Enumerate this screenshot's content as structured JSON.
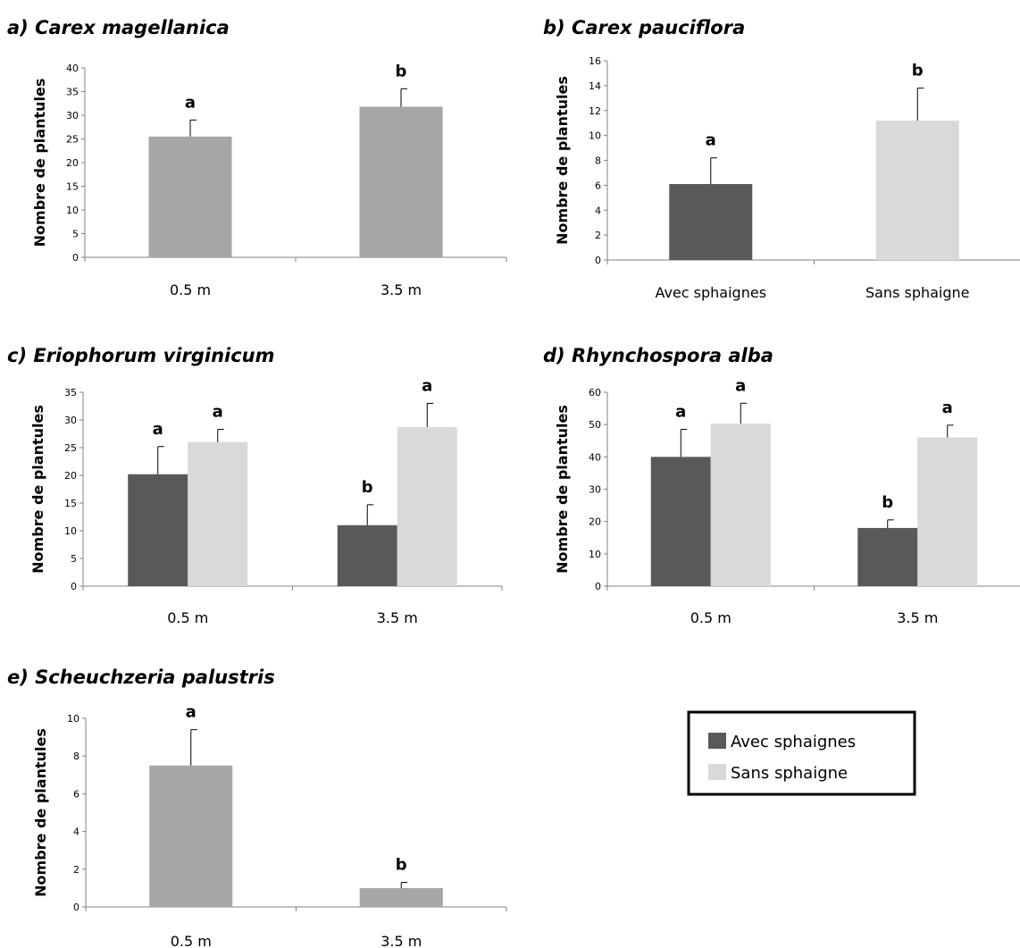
{
  "colors": {
    "avec": "#595959",
    "sans": "#d9d9d9",
    "single": "#a6a6a6",
    "axis": "#808080",
    "error": "#000000"
  },
  "legend": {
    "items": [
      {
        "label": "Avec sphaignes",
        "color": "#595959"
      },
      {
        "label": "Sans sphaigne",
        "color": "#d9d9d9"
      }
    ]
  },
  "chart_data": [
    {
      "id": "a",
      "type": "bar",
      "title": "a) Carex magellanica",
      "ylabel": "Nombre de plantules",
      "ylim": [
        0,
        40
      ],
      "yticks": [
        0,
        5,
        10,
        15,
        20,
        25,
        30,
        35,
        40
      ],
      "categories": [
        "0.5 m",
        "3.5 m"
      ],
      "series": [
        {
          "color": "#a6a6a6",
          "values": [
            25.5,
            31.8
          ],
          "errors": [
            3.5,
            3.8
          ],
          "letters": [
            "a",
            "b"
          ]
        }
      ]
    },
    {
      "id": "b",
      "type": "bar",
      "title": "b) Carex pauciflora",
      "ylabel": "Nombre de plantules",
      "ylim": [
        0,
        16
      ],
      "yticks": [
        0,
        2,
        4,
        6,
        8,
        10,
        12,
        14,
        16
      ],
      "categories": [
        "Avec sphaignes",
        "Sans sphaigne"
      ],
      "series": [
        {
          "color": "#595959",
          "values": [
            6.1,
            null
          ],
          "errors": [
            2.1,
            null
          ],
          "letters": [
            "a",
            null
          ]
        },
        {
          "color": "#d9d9d9",
          "values": [
            null,
            11.2
          ],
          "errors": [
            null,
            2.6
          ],
          "letters": [
            null,
            "b"
          ]
        }
      ]
    },
    {
      "id": "c",
      "type": "bar",
      "title": "c) Eriophorum virginicum",
      "ylabel": "Nombre de plantules",
      "ylim": [
        0,
        35
      ],
      "yticks": [
        0,
        5,
        10,
        15,
        20,
        25,
        30,
        35
      ],
      "categories": [
        "0.5 m",
        "3.5 m"
      ],
      "series": [
        {
          "name": "Avec sphaignes",
          "color": "#595959",
          "values": [
            20.2,
            11.0
          ],
          "errors": [
            5.0,
            3.7
          ],
          "letters": [
            "a",
            "b"
          ]
        },
        {
          "name": "Sans sphaigne",
          "color": "#d9d9d9",
          "values": [
            26.0,
            28.7
          ],
          "errors": [
            2.3,
            4.3
          ],
          "letters": [
            "a",
            "a"
          ]
        }
      ]
    },
    {
      "id": "d",
      "type": "bar",
      "title": "d) Rhynchospora alba",
      "ylabel": "Nombre de plantules",
      "ylim": [
        0,
        60
      ],
      "yticks": [
        0,
        10,
        20,
        30,
        40,
        50,
        60
      ],
      "categories": [
        "0.5 m",
        "3.5 m"
      ],
      "series": [
        {
          "name": "Avec sphaignes",
          "color": "#595959",
          "values": [
            40.0,
            18.0
          ],
          "errors": [
            8.5,
            2.5
          ],
          "letters": [
            "a",
            "b"
          ]
        },
        {
          "name": "Sans sphaigne",
          "color": "#d9d9d9",
          "values": [
            50.3,
            46.0
          ],
          "errors": [
            6.3,
            3.8
          ],
          "letters": [
            "a",
            "a"
          ]
        }
      ]
    },
    {
      "id": "e",
      "type": "bar",
      "title": "e) Scheuchzeria palustris",
      "ylabel": "Nombre de plantules",
      "ylim": [
        0,
        10
      ],
      "yticks": [
        0,
        2,
        4,
        6,
        8,
        10
      ],
      "categories": [
        "0.5 m",
        "3.5 m"
      ],
      "series": [
        {
          "color": "#a6a6a6",
          "values": [
            7.5,
            1.0
          ],
          "errors": [
            1.9,
            0.3
          ],
          "letters": [
            "a",
            "b"
          ]
        }
      ]
    }
  ]
}
